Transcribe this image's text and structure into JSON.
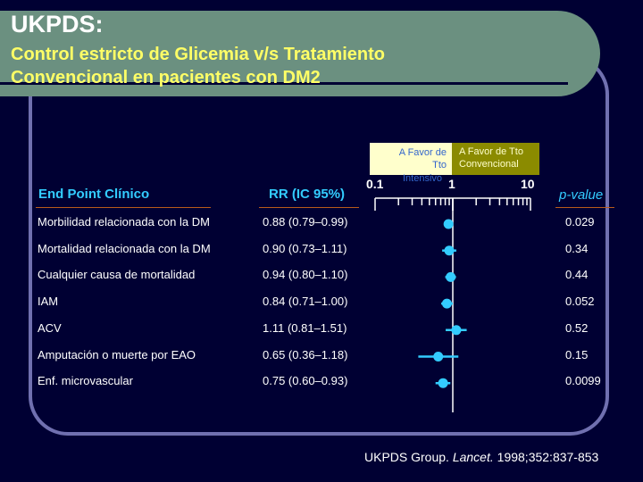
{
  "title": "UKPDS:",
  "subtitle_line1": "Control estricto de Glicemia v/s Tratamiento",
  "subtitle_line2": "Convencional en pacientes con DM2",
  "col_endpoint": "End Point Clínico",
  "col_rr": "RR (IC 95%)",
  "col_p": "p-value",
  "legend_left_line1": "A Favor de",
  "legend_left_line2": "Tto",
  "legend_left_line3": "Intensivo",
  "legend_right_line1": "A Favor de Tto",
  "legend_right_line2": "Convencional",
  "citation_pre": "UKPDS Group. ",
  "citation_journal": "Lancet. ",
  "citation_post": "1998;352:837-853",
  "colors": {
    "marker": "#33ccff",
    "header": "#33ccff",
    "title_band": "#6b9080",
    "subtitle": "#ffff66"
  },
  "chart_data": {
    "type": "forest",
    "x_scale": "log",
    "x_ticks": [
      "0.1",
      "1",
      "10"
    ],
    "xlim": [
      0.1,
      10
    ],
    "reference": 1,
    "rows": [
      {
        "label": "Morbilidad relacionada con la DM",
        "rr_text": "0.88 (0.79–0.99)",
        "rr": 0.88,
        "lo": 0.79,
        "hi": 0.99,
        "p": "0.029"
      },
      {
        "label": "Mortalidad relacionada con la DM",
        "rr_text": "0.90 (0.73–1.11)",
        "rr": 0.9,
        "lo": 0.73,
        "hi": 1.11,
        "p": "0.34"
      },
      {
        "label": "Cualquier causa de mortalidad",
        "rr_text": "0.94 (0.80–1.10)",
        "rr": 0.94,
        "lo": 0.8,
        "hi": 1.1,
        "p": "0.44"
      },
      {
        "label": "IAM",
        "rr_text": "0.84 (0.71–1.00)",
        "rr": 0.84,
        "lo": 0.71,
        "hi": 1.0,
        "p": "0.052"
      },
      {
        "label": "ACV",
        "rr_text": "1.11 (0.81–1.51)",
        "rr": 1.11,
        "lo": 0.81,
        "hi": 1.51,
        "p": "0.52"
      },
      {
        "label": "Amputación o muerte por EAO",
        "rr_text": "0.65 (0.36–1.18)",
        "rr": 0.65,
        "lo": 0.36,
        "hi": 1.18,
        "p": "0.15"
      },
      {
        "label": "Enf. microvascular",
        "rr_text": "0.75 (0.60–0.93)",
        "rr": 0.75,
        "lo": 0.6,
        "hi": 0.93,
        "p": "0.0099"
      }
    ]
  }
}
